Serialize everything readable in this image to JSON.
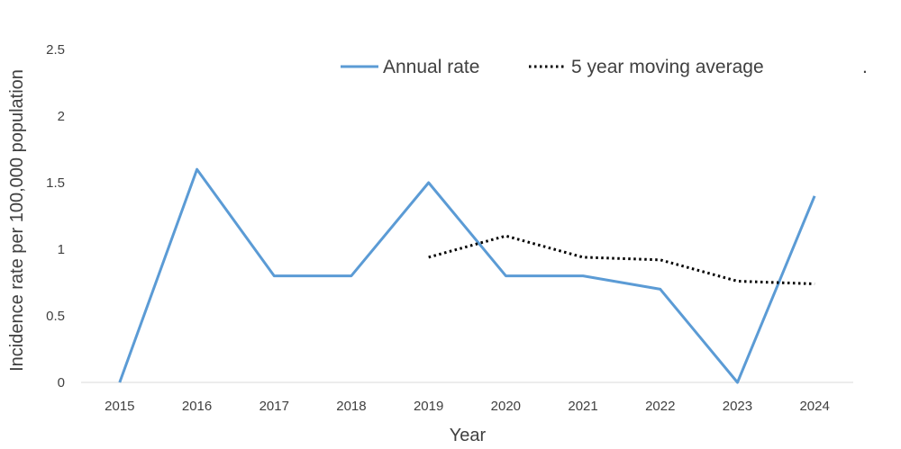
{
  "chart_data": {
    "type": "line",
    "title": "",
    "xlabel": "Year",
    "ylabel": "Incidence rate per 100,000 population",
    "categories": [
      "2015",
      "2016",
      "2017",
      "2018",
      "2019",
      "2020",
      "2021",
      "2022",
      "2023",
      "2024"
    ],
    "ylim": [
      0,
      2.5
    ],
    "yticks": [
      "0",
      "0.5",
      "1",
      "1.5",
      "2",
      "2.5"
    ],
    "grid": false,
    "legend": {
      "placement": "top-right",
      "trailing_mark": "."
    },
    "series": [
      {
        "name": "Annual rate",
        "style": "solid",
        "color": "#5B9BD5",
        "values": [
          0,
          1.6,
          0.8,
          0.8,
          1.5,
          0.8,
          0.8,
          0.7,
          0,
          1.4
        ]
      },
      {
        "name": "5 year moving average",
        "style": "dotted",
        "color": "#000000",
        "values": [
          null,
          null,
          null,
          null,
          0.94,
          1.1,
          0.94,
          0.92,
          0.76,
          0.74
        ]
      }
    ]
  }
}
